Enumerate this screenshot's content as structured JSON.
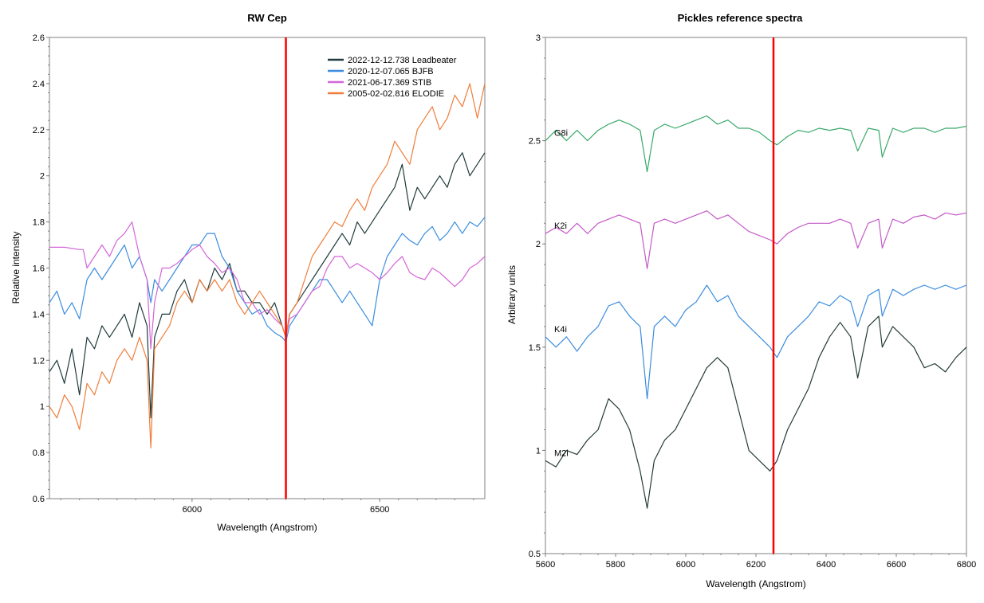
{
  "chart_data": [
    {
      "type": "line",
      "title": "RW Cep",
      "xlabel": "Wavelength (Angstrom)",
      "ylabel": "Relative intensity",
      "xlim": [
        5620,
        6780
      ],
      "ylim": [
        0.6,
        2.6
      ],
      "x_ticks": [
        6000,
        6500
      ],
      "y_ticks": [
        0.6,
        0.8,
        1,
        1.2,
        1.4,
        1.6,
        1.8,
        2,
        2.2,
        2.4,
        2.6
      ],
      "x_tick_labels": [
        "6000",
        "6500"
      ],
      "y_tick_labels": [
        "0.6",
        "0.8",
        "1",
        "1.2",
        "1.4",
        "1.6",
        "1.8",
        "2",
        "2.2",
        "2.4",
        "2.6"
      ],
      "marker_line": {
        "x": 6250,
        "color": "#ff0000"
      },
      "legend_position": "top-right",
      "series": [
        {
          "name": "2022-12-12.738  Leadbeater",
          "color": "#1f3b3a",
          "x": [
            5620,
            5640,
            5660,
            5680,
            5700,
            5720,
            5740,
            5760,
            5780,
            5800,
            5820,
            5840,
            5860,
            5880,
            5890,
            5900,
            5920,
            5940,
            5960,
            5980,
            6000,
            6020,
            6040,
            6060,
            6080,
            6100,
            6120,
            6140,
            6160,
            6180,
            6200,
            6220,
            6240,
            6250,
            6260,
            6280,
            6300,
            6320,
            6340,
            6360,
            6380,
            6400,
            6420,
            6440,
            6460,
            6480,
            6500,
            6520,
            6540,
            6560,
            6580,
            6600,
            6620,
            6640,
            6660,
            6680,
            6700,
            6720,
            6740,
            6760,
            6780
          ],
          "y": [
            1.15,
            1.2,
            1.1,
            1.25,
            1.05,
            1.3,
            1.25,
            1.35,
            1.3,
            1.35,
            1.4,
            1.3,
            1.45,
            1.35,
            0.95,
            1.3,
            1.4,
            1.4,
            1.5,
            1.55,
            1.45,
            1.55,
            1.5,
            1.6,
            1.55,
            1.62,
            1.5,
            1.5,
            1.45,
            1.45,
            1.4,
            1.45,
            1.35,
            1.3,
            1.4,
            1.45,
            1.5,
            1.55,
            1.6,
            1.65,
            1.7,
            1.75,
            1.7,
            1.8,
            1.75,
            1.8,
            1.85,
            1.9,
            1.95,
            2.05,
            1.85,
            1.95,
            1.9,
            1.95,
            2.0,
            1.95,
            2.05,
            2.1,
            2.0,
            2.05,
            2.1
          ]
        },
        {
          "name": "2020-12-07.065  BJFB",
          "color": "#3b8de0",
          "x": [
            5620,
            5640,
            5660,
            5680,
            5700,
            5720,
            5740,
            5760,
            5780,
            5800,
            5820,
            5840,
            5860,
            5880,
            5890,
            5900,
            5920,
            5940,
            5960,
            5980,
            6000,
            6020,
            6040,
            6060,
            6080,
            6100,
            6120,
            6140,
            6160,
            6180,
            6200,
            6220,
            6240,
            6250,
            6260,
            6280,
            6300,
            6320,
            6340,
            6360,
            6380,
            6400,
            6420,
            6440,
            6460,
            6480,
            6500,
            6520,
            6540,
            6560,
            6580,
            6600,
            6620,
            6640,
            6660,
            6680,
            6700,
            6720,
            6740,
            6760,
            6780
          ],
          "y": [
            1.45,
            1.5,
            1.4,
            1.45,
            1.38,
            1.55,
            1.6,
            1.55,
            1.6,
            1.65,
            1.7,
            1.6,
            1.65,
            1.55,
            1.45,
            1.55,
            1.5,
            1.55,
            1.6,
            1.65,
            1.7,
            1.7,
            1.75,
            1.75,
            1.65,
            1.6,
            1.5,
            1.45,
            1.4,
            1.42,
            1.35,
            1.32,
            1.3,
            1.28,
            1.35,
            1.4,
            1.45,
            1.5,
            1.55,
            1.55,
            1.5,
            1.45,
            1.5,
            1.45,
            1.4,
            1.35,
            1.55,
            1.65,
            1.7,
            1.75,
            1.72,
            1.7,
            1.75,
            1.78,
            1.72,
            1.75,
            1.8,
            1.75,
            1.8,
            1.78,
            1.82
          ]
        },
        {
          "name": "2021-06-17.369  STIB",
          "color": "#d466d8",
          "x": [
            5620,
            5660,
            5700,
            5710,
            5720,
            5740,
            5760,
            5780,
            5800,
            5820,
            5840,
            5860,
            5880,
            5890,
            5900,
            5920,
            5940,
            5960,
            5980,
            6000,
            6020,
            6040,
            6060,
            6080,
            6100,
            6120,
            6140,
            6160,
            6180,
            6200,
            6220,
            6240,
            6250,
            6260,
            6280,
            6300,
            6320,
            6340,
            6360,
            6380,
            6400,
            6420,
            6440,
            6460,
            6480,
            6500,
            6520,
            6540,
            6560,
            6580,
            6600,
            6620,
            6640,
            6660,
            6680,
            6700,
            6720,
            6740,
            6760,
            6780
          ],
          "y": [
            1.69,
            1.69,
            1.68,
            1.68,
            1.6,
            1.65,
            1.7,
            1.65,
            1.72,
            1.75,
            1.8,
            1.65,
            1.55,
            1.25,
            1.45,
            1.6,
            1.6,
            1.62,
            1.65,
            1.68,
            1.7,
            1.65,
            1.62,
            1.58,
            1.6,
            1.55,
            1.45,
            1.45,
            1.4,
            1.42,
            1.38,
            1.35,
            1.3,
            1.38,
            1.4,
            1.45,
            1.5,
            1.52,
            1.6,
            1.65,
            1.65,
            1.6,
            1.62,
            1.6,
            1.58,
            1.55,
            1.58,
            1.62,
            1.65,
            1.58,
            1.56,
            1.55,
            1.6,
            1.58,
            1.55,
            1.52,
            1.55,
            1.6,
            1.62,
            1.65
          ]
        },
        {
          "name": "2005-02-02.816  ELODIE",
          "color": "#f07d3a",
          "x": [
            5620,
            5640,
            5660,
            5680,
            5700,
            5720,
            5740,
            5760,
            5780,
            5800,
            5820,
            5840,
            5860,
            5880,
            5890,
            5900,
            5920,
            5940,
            5960,
            5980,
            6000,
            6020,
            6040,
            6060,
            6080,
            6100,
            6120,
            6140,
            6160,
            6180,
            6200,
            6220,
            6240,
            6250,
            6260,
            6280,
            6300,
            6320,
            6340,
            6360,
            6380,
            6400,
            6420,
            6440,
            6460,
            6480,
            6500,
            6520,
            6540,
            6560,
            6580,
            6600,
            6620,
            6640,
            6660,
            6680,
            6700,
            6720,
            6740,
            6760,
            6780
          ],
          "y": [
            1.0,
            0.95,
            1.05,
            1.0,
            0.9,
            1.1,
            1.05,
            1.15,
            1.1,
            1.2,
            1.25,
            1.2,
            1.3,
            1.2,
            0.82,
            1.25,
            1.3,
            1.35,
            1.45,
            1.5,
            1.45,
            1.55,
            1.5,
            1.55,
            1.5,
            1.55,
            1.45,
            1.4,
            1.45,
            1.5,
            1.45,
            1.4,
            1.35,
            1.3,
            1.4,
            1.45,
            1.55,
            1.65,
            1.7,
            1.75,
            1.8,
            1.78,
            1.85,
            1.9,
            1.85,
            1.95,
            2.0,
            2.05,
            2.15,
            2.1,
            2.05,
            2.2,
            2.25,
            2.3,
            2.2,
            2.25,
            2.35,
            2.3,
            2.4,
            2.25,
            2.4
          ]
        }
      ]
    },
    {
      "type": "line",
      "title": "Pickles reference spectra",
      "xlabel": "Wavelength (Angstrom)",
      "ylabel": "Arbitrary units",
      "xlim": [
        5600,
        6800
      ],
      "ylim": [
        0.5,
        3
      ],
      "x_ticks": [
        5600,
        5800,
        6000,
        6200,
        6400,
        6600,
        6800
      ],
      "y_ticks": [
        0.5,
        1,
        1.5,
        2,
        2.5,
        3
      ],
      "x_tick_labels": [
        "5600",
        "5800",
        "6000",
        "6200",
        "6400",
        "6600",
        "6800"
      ],
      "y_tick_labels": [
        "0.5",
        "1",
        "1.5",
        "2",
        "2.5",
        "3"
      ],
      "marker_line": {
        "x": 6250,
        "color": "#ff0000"
      },
      "series": [
        {
          "name": "G8i",
          "color": "#3aa96b",
          "x": [
            5600,
            5630,
            5660,
            5690,
            5720,
            5750,
            5780,
            5810,
            5840,
            5870,
            5890,
            5910,
            5940,
            5970,
            6000,
            6030,
            6060,
            6090,
            6120,
            6150,
            6180,
            6210,
            6240,
            6260,
            6290,
            6320,
            6350,
            6380,
            6410,
            6440,
            6470,
            6490,
            6520,
            6550,
            6560,
            6590,
            6620,
            6650,
            6680,
            6710,
            6740,
            6770,
            6800
          ],
          "y": [
            2.5,
            2.55,
            2.5,
            2.55,
            2.5,
            2.55,
            2.58,
            2.6,
            2.58,
            2.55,
            2.35,
            2.55,
            2.58,
            2.56,
            2.58,
            2.6,
            2.62,
            2.58,
            2.6,
            2.56,
            2.56,
            2.54,
            2.5,
            2.48,
            2.52,
            2.55,
            2.54,
            2.56,
            2.55,
            2.56,
            2.55,
            2.45,
            2.56,
            2.55,
            2.42,
            2.56,
            2.54,
            2.56,
            2.56,
            2.54,
            2.56,
            2.56,
            2.57
          ]
        },
        {
          "name": "K2i",
          "color": "#c45ac8",
          "x": [
            5600,
            5630,
            5660,
            5690,
            5720,
            5750,
            5780,
            5810,
            5840,
            5870,
            5890,
            5910,
            5940,
            5970,
            6000,
            6030,
            6060,
            6090,
            6120,
            6150,
            6180,
            6210,
            6240,
            6260,
            6290,
            6320,
            6350,
            6380,
            6410,
            6440,
            6470,
            6490,
            6520,
            6550,
            6560,
            6590,
            6620,
            6650,
            6680,
            6710,
            6740,
            6770,
            6800
          ],
          "y": [
            2.05,
            2.08,
            2.05,
            2.1,
            2.05,
            2.1,
            2.12,
            2.14,
            2.12,
            2.1,
            1.88,
            2.1,
            2.12,
            2.1,
            2.12,
            2.14,
            2.16,
            2.12,
            2.14,
            2.1,
            2.06,
            2.04,
            2.02,
            2.0,
            2.05,
            2.08,
            2.1,
            2.1,
            2.1,
            2.12,
            2.1,
            1.98,
            2.1,
            2.12,
            1.98,
            2.12,
            2.1,
            2.13,
            2.14,
            2.12,
            2.15,
            2.14,
            2.15
          ]
        },
        {
          "name": "K4i",
          "color": "#3b8de0",
          "x": [
            5600,
            5630,
            5660,
            5690,
            5720,
            5750,
            5780,
            5810,
            5840,
            5870,
            5890,
            5910,
            5940,
            5970,
            6000,
            6030,
            6060,
            6090,
            6120,
            6150,
            6180,
            6210,
            6240,
            6260,
            6290,
            6320,
            6350,
            6380,
            6410,
            6440,
            6470,
            6490,
            6520,
            6550,
            6560,
            6590,
            6620,
            6650,
            6680,
            6710,
            6740,
            6770,
            6800
          ],
          "y": [
            1.55,
            1.5,
            1.55,
            1.48,
            1.55,
            1.6,
            1.7,
            1.72,
            1.65,
            1.6,
            1.25,
            1.6,
            1.65,
            1.6,
            1.68,
            1.72,
            1.8,
            1.72,
            1.75,
            1.65,
            1.6,
            1.55,
            1.5,
            1.45,
            1.55,
            1.6,
            1.65,
            1.72,
            1.7,
            1.75,
            1.72,
            1.6,
            1.75,
            1.78,
            1.65,
            1.78,
            1.75,
            1.78,
            1.8,
            1.78,
            1.8,
            1.78,
            1.8
          ]
        },
        {
          "name": "M2i",
          "color": "#243b38",
          "x": [
            5600,
            5630,
            5660,
            5690,
            5720,
            5750,
            5780,
            5810,
            5840,
            5870,
            5890,
            5910,
            5940,
            5970,
            6000,
            6030,
            6060,
            6090,
            6120,
            6150,
            6180,
            6210,
            6240,
            6260,
            6290,
            6320,
            6350,
            6380,
            6410,
            6440,
            6470,
            6490,
            6520,
            6550,
            6560,
            6590,
            6620,
            6650,
            6680,
            6710,
            6740,
            6770,
            6800
          ],
          "y": [
            0.95,
            0.92,
            1.0,
            0.98,
            1.05,
            1.1,
            1.25,
            1.2,
            1.1,
            0.9,
            0.72,
            0.95,
            1.05,
            1.1,
            1.2,
            1.3,
            1.4,
            1.45,
            1.4,
            1.2,
            1.0,
            0.95,
            0.9,
            0.95,
            1.1,
            1.2,
            1.3,
            1.45,
            1.55,
            1.62,
            1.55,
            1.35,
            1.6,
            1.65,
            1.5,
            1.6,
            1.55,
            1.5,
            1.4,
            1.42,
            1.38,
            1.45,
            1.5
          ]
        }
      ]
    }
  ]
}
